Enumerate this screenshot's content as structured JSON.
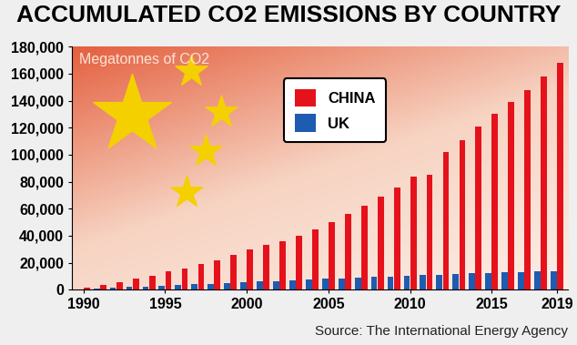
{
  "chart_data": {
    "type": "bar",
    "title": "ACCUMULATED CO2 EMISSIONS BY COUNTRY",
    "ylabel": "Megatonnes of CO2",
    "source": "Source: The International Energy Agency",
    "x": [
      1990,
      1991,
      1992,
      1993,
      1994,
      1995,
      1996,
      1997,
      1998,
      1999,
      2000,
      2001,
      2002,
      2003,
      2004,
      2005,
      2006,
      2007,
      2008,
      2009,
      2010,
      2011,
      2012,
      2013,
      2014,
      2015,
      2016,
      2017,
      2018,
      2019
    ],
    "series": [
      {
        "name": "CHINA",
        "color": "#e5121c",
        "values": [
          1500,
          3500,
          5500,
          8000,
          10500,
          13500,
          16000,
          19000,
          22000,
          26000,
          30000,
          33000,
          36000,
          40000,
          45000,
          50000,
          56000,
          62000,
          69000,
          76000,
          84000,
          85000,
          102000,
          111000,
          121000,
          130000,
          139000,
          148000,
          158000,
          168000
        ]
      },
      {
        "name": "UK",
        "color": "#1d5cb0",
        "values": [
          500,
          1000,
          1500,
          2000,
          2600,
          3100,
          3600,
          4100,
          4600,
          5100,
          5600,
          6100,
          6600,
          7100,
          7600,
          8100,
          8600,
          9100,
          9600,
          10000,
          10500,
          10900,
          11300,
          11700,
          12100,
          12500,
          12800,
          13100,
          13400,
          13700
        ]
      }
    ],
    "xlim": [
      1989.3,
      2019.7
    ],
    "xticks": [
      1990,
      1995,
      2000,
      2005,
      2010,
      2015,
      2019
    ],
    "ylim": [
      0,
      180000
    ],
    "yticks": [
      0,
      {
        "value": 20000,
        "label": "20,000"
      },
      {
        "value": 40000,
        "label": "40,000"
      },
      {
        "value": 60000,
        "label": "60,000"
      },
      {
        "value": 80000,
        "label": "80,000"
      },
      {
        "value": 100000,
        "label": "100,000"
      },
      {
        "value": 120000,
        "label": "120,000"
      },
      {
        "value": 140000,
        "label": "140,000"
      },
      {
        "value": 160000,
        "label": "160,000"
      },
      {
        "value": 180000,
        "label": "180,000"
      }
    ],
    "legend": "upper center"
  }
}
